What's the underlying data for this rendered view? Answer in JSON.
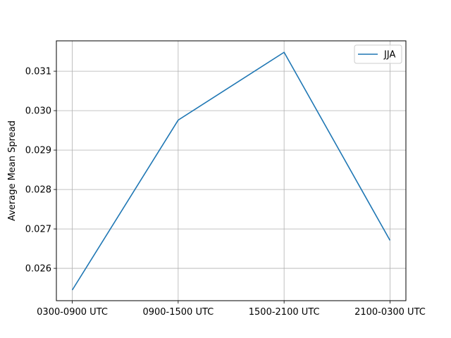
{
  "chart_data": {
    "type": "line",
    "title": "",
    "xlabel": "",
    "ylabel": "Average Mean Spread",
    "categories": [
      "0300-0900 UTC",
      "0900-1500 UTC",
      "1500-2100 UTC",
      "2100-0300 UTC"
    ],
    "series": [
      {
        "name": "JJA",
        "color": "#1f77b4",
        "values": [
          0.02545,
          0.02976,
          0.03148,
          0.02671
        ]
      }
    ],
    "ylim": [
      0.02518,
      0.03177
    ],
    "yticks": [
      0.026,
      0.027,
      0.028,
      0.029,
      0.03,
      0.031
    ],
    "ytick_labels": [
      "0.026",
      "0.027",
      "0.028",
      "0.029",
      "0.030",
      "0.031"
    ],
    "grid": true,
    "legend_position": "top-right"
  }
}
